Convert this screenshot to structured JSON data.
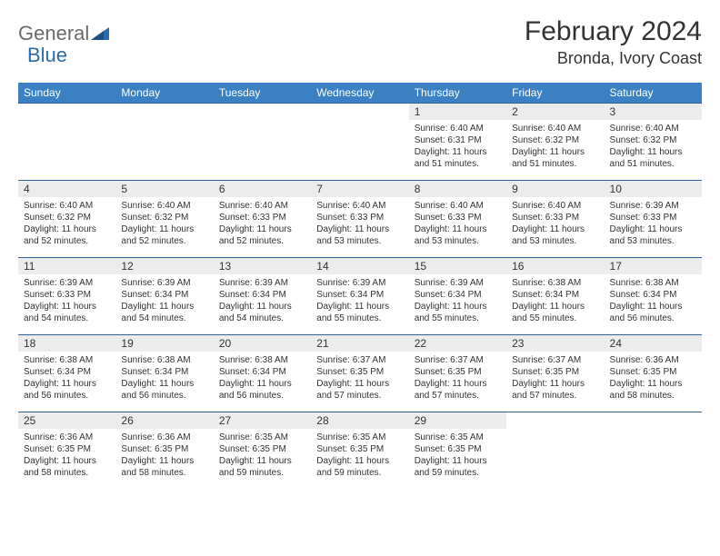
{
  "logo": {
    "text1": "General",
    "text2": "Blue"
  },
  "title": "February 2024",
  "location": "Bronda, Ivory Coast",
  "colors": {
    "header_bg": "#3a80c2",
    "header_text": "#ffffff",
    "daynum_bg": "#ececec",
    "border": "#2f5f93",
    "logo_gray": "#6a6a6a",
    "logo_blue": "#2a6bb0"
  },
  "day_headers": [
    "Sunday",
    "Monday",
    "Tuesday",
    "Wednesday",
    "Thursday",
    "Friday",
    "Saturday"
  ],
  "weeks": [
    [
      null,
      null,
      null,
      null,
      {
        "n": "1",
        "sr": "6:40 AM",
        "ss": "6:31 PM",
        "dl": "11 hours and 51 minutes."
      },
      {
        "n": "2",
        "sr": "6:40 AM",
        "ss": "6:32 PM",
        "dl": "11 hours and 51 minutes."
      },
      {
        "n": "3",
        "sr": "6:40 AM",
        "ss": "6:32 PM",
        "dl": "11 hours and 51 minutes."
      }
    ],
    [
      {
        "n": "4",
        "sr": "6:40 AM",
        "ss": "6:32 PM",
        "dl": "11 hours and 52 minutes."
      },
      {
        "n": "5",
        "sr": "6:40 AM",
        "ss": "6:32 PM",
        "dl": "11 hours and 52 minutes."
      },
      {
        "n": "6",
        "sr": "6:40 AM",
        "ss": "6:33 PM",
        "dl": "11 hours and 52 minutes."
      },
      {
        "n": "7",
        "sr": "6:40 AM",
        "ss": "6:33 PM",
        "dl": "11 hours and 53 minutes."
      },
      {
        "n": "8",
        "sr": "6:40 AM",
        "ss": "6:33 PM",
        "dl": "11 hours and 53 minutes."
      },
      {
        "n": "9",
        "sr": "6:40 AM",
        "ss": "6:33 PM",
        "dl": "11 hours and 53 minutes."
      },
      {
        "n": "10",
        "sr": "6:39 AM",
        "ss": "6:33 PM",
        "dl": "11 hours and 53 minutes."
      }
    ],
    [
      {
        "n": "11",
        "sr": "6:39 AM",
        "ss": "6:33 PM",
        "dl": "11 hours and 54 minutes."
      },
      {
        "n": "12",
        "sr": "6:39 AM",
        "ss": "6:34 PM",
        "dl": "11 hours and 54 minutes."
      },
      {
        "n": "13",
        "sr": "6:39 AM",
        "ss": "6:34 PM",
        "dl": "11 hours and 54 minutes."
      },
      {
        "n": "14",
        "sr": "6:39 AM",
        "ss": "6:34 PM",
        "dl": "11 hours and 55 minutes."
      },
      {
        "n": "15",
        "sr": "6:39 AM",
        "ss": "6:34 PM",
        "dl": "11 hours and 55 minutes."
      },
      {
        "n": "16",
        "sr": "6:38 AM",
        "ss": "6:34 PM",
        "dl": "11 hours and 55 minutes."
      },
      {
        "n": "17",
        "sr": "6:38 AM",
        "ss": "6:34 PM",
        "dl": "11 hours and 56 minutes."
      }
    ],
    [
      {
        "n": "18",
        "sr": "6:38 AM",
        "ss": "6:34 PM",
        "dl": "11 hours and 56 minutes."
      },
      {
        "n": "19",
        "sr": "6:38 AM",
        "ss": "6:34 PM",
        "dl": "11 hours and 56 minutes."
      },
      {
        "n": "20",
        "sr": "6:38 AM",
        "ss": "6:34 PM",
        "dl": "11 hours and 56 minutes."
      },
      {
        "n": "21",
        "sr": "6:37 AM",
        "ss": "6:35 PM",
        "dl": "11 hours and 57 minutes."
      },
      {
        "n": "22",
        "sr": "6:37 AM",
        "ss": "6:35 PM",
        "dl": "11 hours and 57 minutes."
      },
      {
        "n": "23",
        "sr": "6:37 AM",
        "ss": "6:35 PM",
        "dl": "11 hours and 57 minutes."
      },
      {
        "n": "24",
        "sr": "6:36 AM",
        "ss": "6:35 PM",
        "dl": "11 hours and 58 minutes."
      }
    ],
    [
      {
        "n": "25",
        "sr": "6:36 AM",
        "ss": "6:35 PM",
        "dl": "11 hours and 58 minutes."
      },
      {
        "n": "26",
        "sr": "6:36 AM",
        "ss": "6:35 PM",
        "dl": "11 hours and 58 minutes."
      },
      {
        "n": "27",
        "sr": "6:35 AM",
        "ss": "6:35 PM",
        "dl": "11 hours and 59 minutes."
      },
      {
        "n": "28",
        "sr": "6:35 AM",
        "ss": "6:35 PM",
        "dl": "11 hours and 59 minutes."
      },
      {
        "n": "29",
        "sr": "6:35 AM",
        "ss": "6:35 PM",
        "dl": "11 hours and 59 minutes."
      },
      null,
      null
    ]
  ],
  "labels": {
    "sunrise": "Sunrise:",
    "sunset": "Sunset:",
    "daylight": "Daylight:"
  }
}
